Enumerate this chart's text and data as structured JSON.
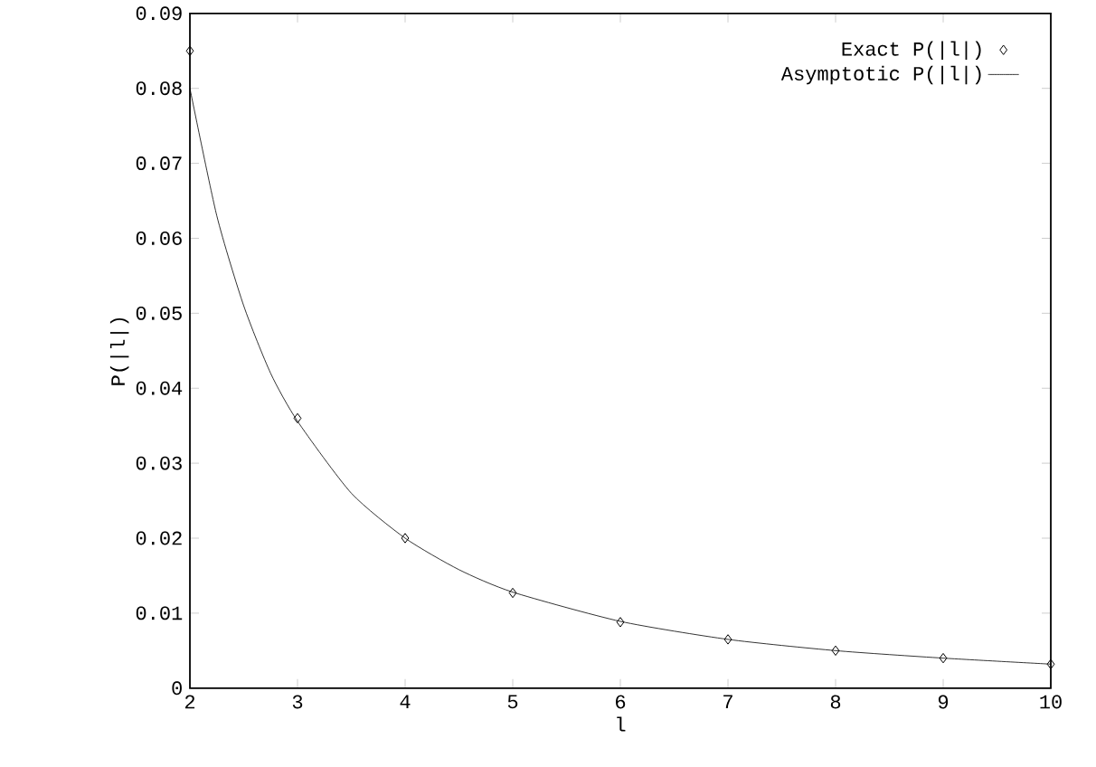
{
  "chart_data": {
    "type": "scatter",
    "xlabel": "l",
    "ylabel": "P(|l|)",
    "xlim": [
      2,
      10
    ],
    "ylim": [
      0,
      0.09
    ],
    "xticks": [
      2,
      3,
      4,
      5,
      6,
      7,
      8,
      9,
      10
    ],
    "yticks": [
      0,
      0.01,
      0.02,
      0.03,
      0.04,
      0.05,
      0.06,
      0.07,
      0.08,
      0.09
    ],
    "legend": "top right",
    "grid": false,
    "series": [
      {
        "name": "Exact P(|l|)",
        "marker": "diamond",
        "color": "#000000",
        "x": [
          2,
          3,
          4,
          5,
          6,
          7,
          8,
          9,
          10
        ],
        "values": [
          0.085,
          0.036,
          0.02,
          0.0127,
          0.0088,
          0.0065,
          0.005,
          0.004,
          0.0032
        ]
      },
      {
        "name": "Asymptotic P(|l|)",
        "type": "line",
        "marker": "none",
        "line_style": "solid",
        "color": "#000000",
        "x": [
          2,
          2.25,
          2.5,
          2.75,
          3,
          3.5,
          4,
          4.5,
          5,
          6,
          7,
          8,
          9,
          10
        ],
        "values": [
          0.08,
          0.063,
          0.051,
          0.042,
          0.0356,
          0.026,
          0.02,
          0.0158,
          0.0128,
          0.0089,
          0.0065,
          0.005,
          0.004,
          0.0032
        ]
      }
    ]
  }
}
